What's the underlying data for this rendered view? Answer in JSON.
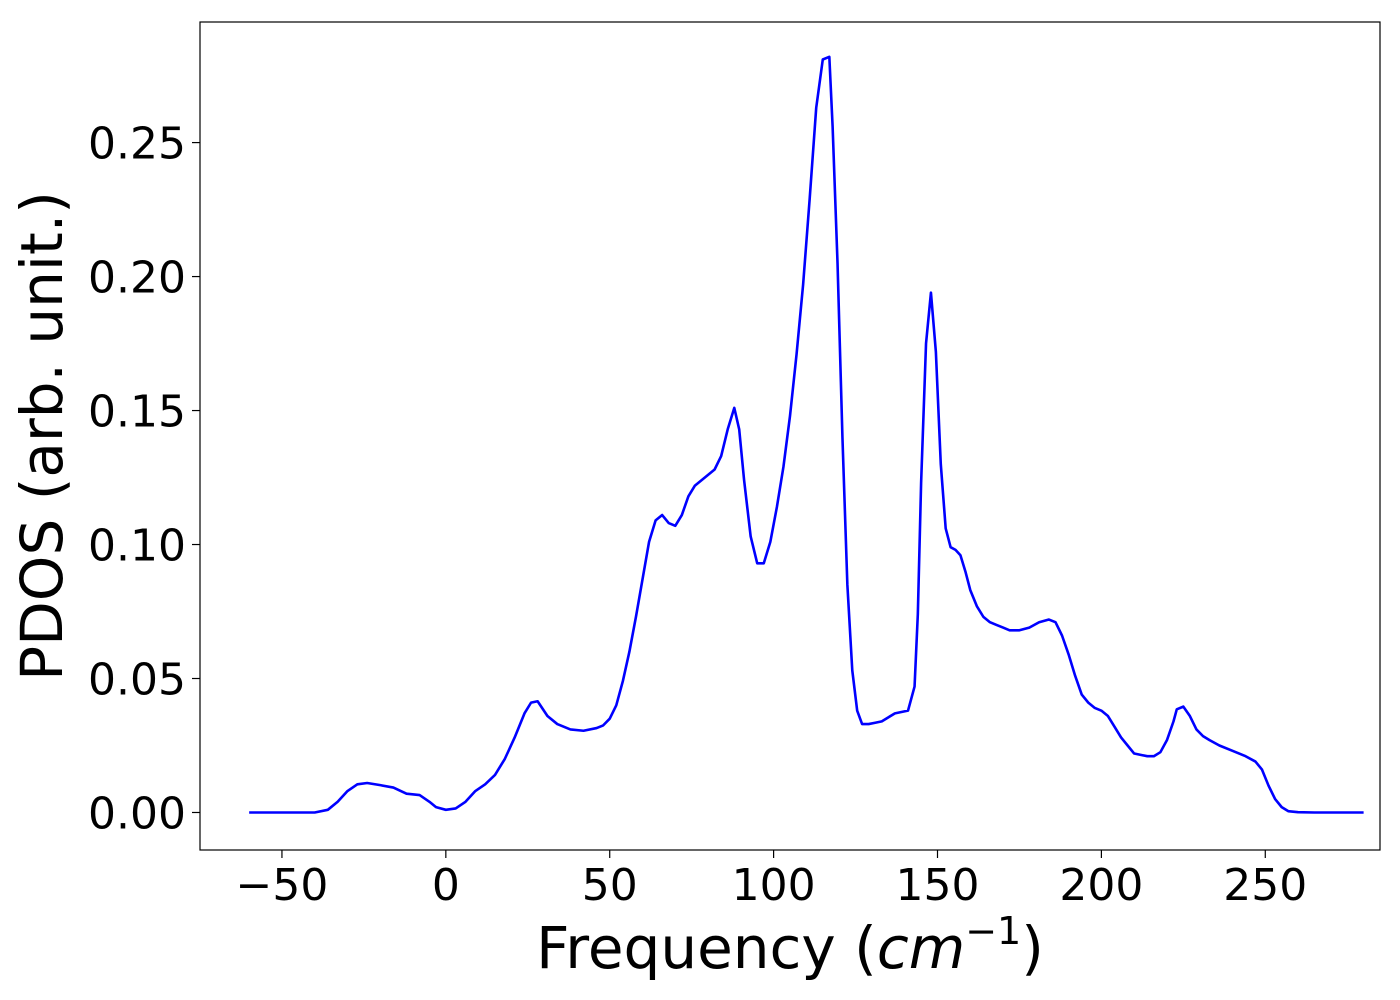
{
  "chart_data": {
    "type": "line",
    "title": "",
    "xlabel": "Frequency (",
    "xlabel_math": "cm",
    "xlabel_exponent": "−1",
    "xlabel_close": ")",
    "ylabel": "PDOS (arb. unit.)",
    "xlim": [
      -75,
      285
    ],
    "ylim": [
      -0.014,
      0.295
    ],
    "grid": false,
    "xticks": [
      -50,
      0,
      50,
      100,
      150,
      200,
      250
    ],
    "xtick_labels": [
      "−50",
      "0",
      "50",
      "100",
      "150",
      "200",
      "250"
    ],
    "yticks": [
      0.0,
      0.05,
      0.1,
      0.15,
      0.2,
      0.25
    ],
    "ytick_labels": [
      "0.00",
      "0.05",
      "0.10",
      "0.15",
      "0.20",
      "0.25"
    ],
    "series": [
      {
        "color": "#0000ff",
        "x": [
          -60,
          -50,
          -40,
          -36,
          -33,
          -30,
          -27,
          -24,
          -20,
          -16,
          -12,
          -8,
          -5,
          -3,
          0,
          3,
          6,
          9,
          12,
          15,
          18,
          21,
          24,
          26,
          28,
          31,
          34,
          38,
          42,
          46,
          48,
          50,
          52,
          54,
          56,
          58,
          60,
          62,
          64,
          66,
          68,
          70,
          72,
          74,
          76,
          78,
          80,
          82,
          84,
          86,
          88,
          89.5,
          91,
          93,
          95,
          97,
          99,
          101,
          103,
          105,
          107,
          109,
          111,
          113,
          115,
          117,
          118,
          119.5,
          121,
          122.5,
          124,
          125.5,
          127,
          129,
          131,
          133,
          135,
          137,
          139,
          141,
          143,
          144,
          145,
          146.5,
          148,
          149.5,
          151,
          152.5,
          154,
          155.5,
          157,
          158.5,
          160,
          162,
          164,
          166,
          168,
          170,
          172,
          175,
          178,
          181,
          184,
          186,
          188,
          190,
          192,
          194,
          196,
          198,
          200,
          202,
          204,
          206,
          208,
          210,
          212,
          214,
          216,
          218,
          220,
          222,
          223,
          225,
          227,
          229,
          231,
          233,
          236,
          240,
          244,
          247,
          249,
          251,
          253,
          255,
          257,
          260,
          265,
          270,
          280
        ],
        "values": [
          0.0,
          0.0,
          0.0,
          0.001,
          0.004,
          0.008,
          0.0105,
          0.011,
          0.0102,
          0.0093,
          0.007,
          0.0065,
          0.004,
          0.002,
          0.001,
          0.0015,
          0.004,
          0.008,
          0.0105,
          0.014,
          0.02,
          0.028,
          0.037,
          0.041,
          0.0415,
          0.036,
          0.033,
          0.031,
          0.0305,
          0.0315,
          0.0325,
          0.035,
          0.04,
          0.049,
          0.06,
          0.073,
          0.087,
          0.101,
          0.109,
          0.111,
          0.108,
          0.107,
          0.111,
          0.118,
          0.122,
          0.124,
          0.126,
          0.128,
          0.133,
          0.143,
          0.151,
          0.143,
          0.124,
          0.103,
          0.093,
          0.093,
          0.101,
          0.114,
          0.129,
          0.148,
          0.171,
          0.197,
          0.229,
          0.263,
          0.281,
          0.282,
          0.256,
          0.205,
          0.14,
          0.085,
          0.053,
          0.038,
          0.033,
          0.033,
          0.0335,
          0.034,
          0.0355,
          0.037,
          0.0375,
          0.038,
          0.047,
          0.074,
          0.123,
          0.175,
          0.194,
          0.172,
          0.13,
          0.106,
          0.099,
          0.098,
          0.096,
          0.09,
          0.083,
          0.077,
          0.073,
          0.071,
          0.07,
          0.069,
          0.068,
          0.068,
          0.069,
          0.071,
          0.072,
          0.071,
          0.066,
          0.059,
          0.051,
          0.044,
          0.041,
          0.039,
          0.038,
          0.036,
          0.032,
          0.028,
          0.025,
          0.022,
          0.0215,
          0.021,
          0.021,
          0.0225,
          0.027,
          0.034,
          0.0385,
          0.0395,
          0.036,
          0.031,
          0.0285,
          0.027,
          0.025,
          0.023,
          0.021,
          0.019,
          0.016,
          0.01,
          0.005,
          0.002,
          0.0005,
          0.0001,
          0.0,
          0.0,
          0.0
        ]
      }
    ]
  }
}
